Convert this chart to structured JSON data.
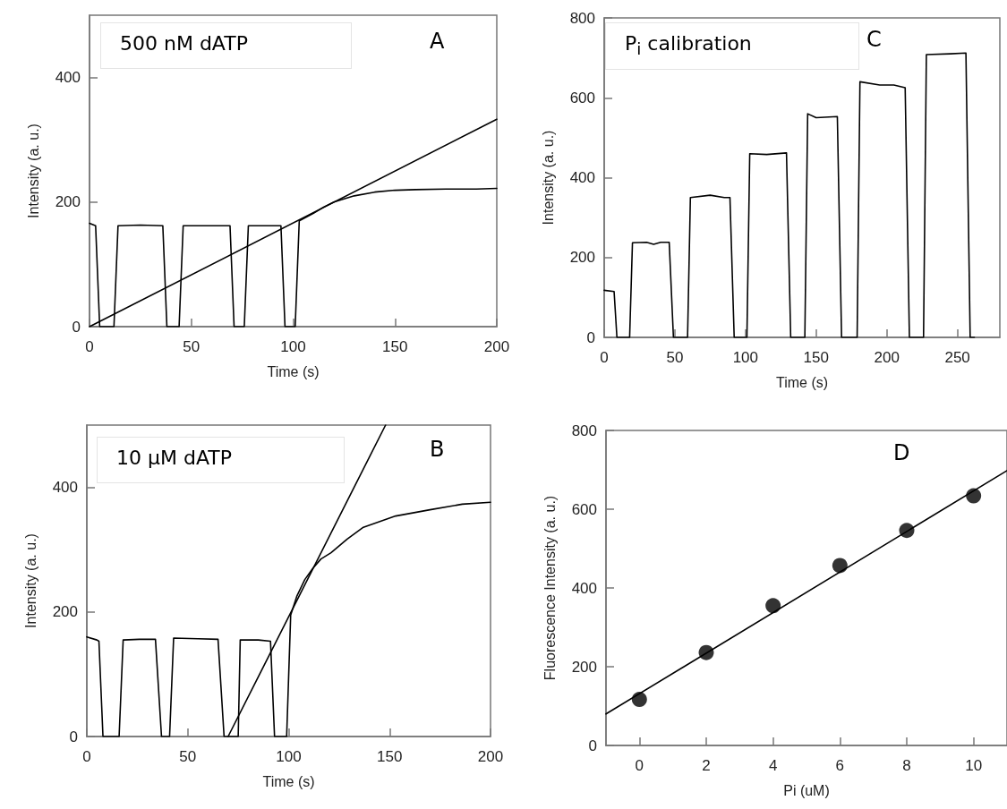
{
  "chart_data": [
    {
      "type": "line",
      "xlabel": "Time (s)",
      "ylabel": "Intensity (a. u.)",
      "annotations": [
        "500 nM dATP",
        "A"
      ],
      "xlim": [
        0,
        200
      ],
      "xticks": [
        0,
        50,
        100,
        150,
        200
      ],
      "ylim": [
        0,
        500
      ],
      "yticks": [
        0,
        200,
        400
      ],
      "grid": false,
      "marker": "none",
      "line_style": "solid",
      "series": [
        {
          "color": "#000000",
          "x": [
            0,
            3,
            5,
            12,
            14,
            25,
            36,
            38,
            44,
            46,
            58,
            69,
            71,
            76,
            78,
            86,
            94,
            96,
            101,
            103,
            110,
            115,
            120,
            130,
            140,
            150,
            160,
            175,
            190,
            200
          ],
          "values": [
            166,
            162,
            0,
            0,
            162,
            163,
            162,
            0,
            0,
            162,
            162,
            162,
            0,
            0,
            162,
            162,
            162,
            0,
            0,
            170,
            182,
            192,
            200,
            210,
            216,
            219,
            220,
            221,
            221,
            222
          ]
        },
        {
          "color": "#000000",
          "x": [
            0,
            200
          ],
          "values": [
            0,
            333
          ]
        }
      ]
    },
    {
      "type": "line",
      "xlabel": "Time (s)",
      "ylabel": "Intensity (a. u.)",
      "annotations": [
        "P$_{i}$ calibration",
        "C"
      ],
      "xlim": [
        0,
        280
      ],
      "xticks": [
        0,
        50,
        100,
        150,
        200,
        250
      ],
      "ylim": [
        0,
        800
      ],
      "yticks": [
        0,
        200,
        400,
        600,
        800
      ],
      "grid": false,
      "marker": "none",
      "line_style": "solid",
      "series": [
        {
          "color": "#000000",
          "x": [
            0,
            7,
            9,
            18,
            20,
            30,
            35,
            40,
            46,
            49,
            59,
            61,
            75,
            85,
            89,
            92,
            101,
            103,
            115,
            129,
            132,
            142,
            144,
            150,
            165,
            168,
            179,
            181,
            195,
            205,
            213,
            216,
            226,
            228,
            245,
            256,
            259,
            262
          ],
          "values": [
            118,
            115,
            0,
            0,
            237,
            238,
            233,
            238,
            238,
            0,
            0,
            350,
            356,
            350,
            350,
            0,
            0,
            460,
            458,
            462,
            0,
            0,
            560,
            550,
            553,
            0,
            0,
            640,
            632,
            632,
            625,
            0,
            0,
            708,
            710,
            712,
            0,
            0
          ]
        }
      ]
    },
    {
      "type": "line",
      "xlabel": "Time (s)",
      "ylabel": "Intensity (a. u.)",
      "annotations": [
        "10 μM dATP",
        "B"
      ],
      "xlim": [
        0,
        200
      ],
      "xticks": [
        0,
        50,
        100,
        150,
        200
      ],
      "ylim": [
        0,
        500
      ],
      "yticks": [
        0,
        200,
        400
      ],
      "grid": false,
      "marker": "none",
      "line_style": "solid",
      "series": [
        {
          "color": "#000000",
          "x": [
            0,
            5,
            6,
            8,
            16,
            18,
            26,
            34,
            37,
            41,
            43,
            55,
            65,
            68,
            75,
            76,
            85,
            91,
            93,
            99,
            101,
            104,
            108,
            112,
            116,
            121,
            129,
            137,
            153,
            170,
            186,
            200
          ],
          "values": [
            160,
            155,
            153,
            0,
            0,
            155,
            156,
            156,
            0,
            0,
            158,
            157,
            156,
            0,
            0,
            155,
            155,
            153,
            0,
            0,
            195,
            225,
            252,
            270,
            285,
            295,
            317,
            336,
            354,
            364,
            373,
            376
          ]
        },
        {
          "color": "#000000",
          "x": [
            70,
            148
          ],
          "values": [
            0,
            500
          ]
        }
      ]
    },
    {
      "type": "scatter",
      "xlabel": "Pi (uM)",
      "ylabel": "Fluorescence Intensity (a. u.)",
      "annotations": [
        "D"
      ],
      "xlim": [
        -1,
        11
      ],
      "xticks": [
        0,
        2,
        4,
        6,
        8,
        10
      ],
      "ylim": [
        0,
        800
      ],
      "yticks": [
        0,
        200,
        400,
        600,
        800
      ],
      "grid": false,
      "marker": "circle",
      "series": [
        {
          "color": "#000000",
          "x": [
            0,
            2,
            4,
            6,
            8,
            10
          ],
          "values": [
            117,
            236,
            355,
            457,
            546,
            634
          ]
        },
        {
          "type": "line",
          "marker": "none",
          "line_style": "solid",
          "color": "#000000",
          "x": [
            -1,
            11
          ],
          "values": [
            80,
            698
          ]
        }
      ]
    }
  ]
}
